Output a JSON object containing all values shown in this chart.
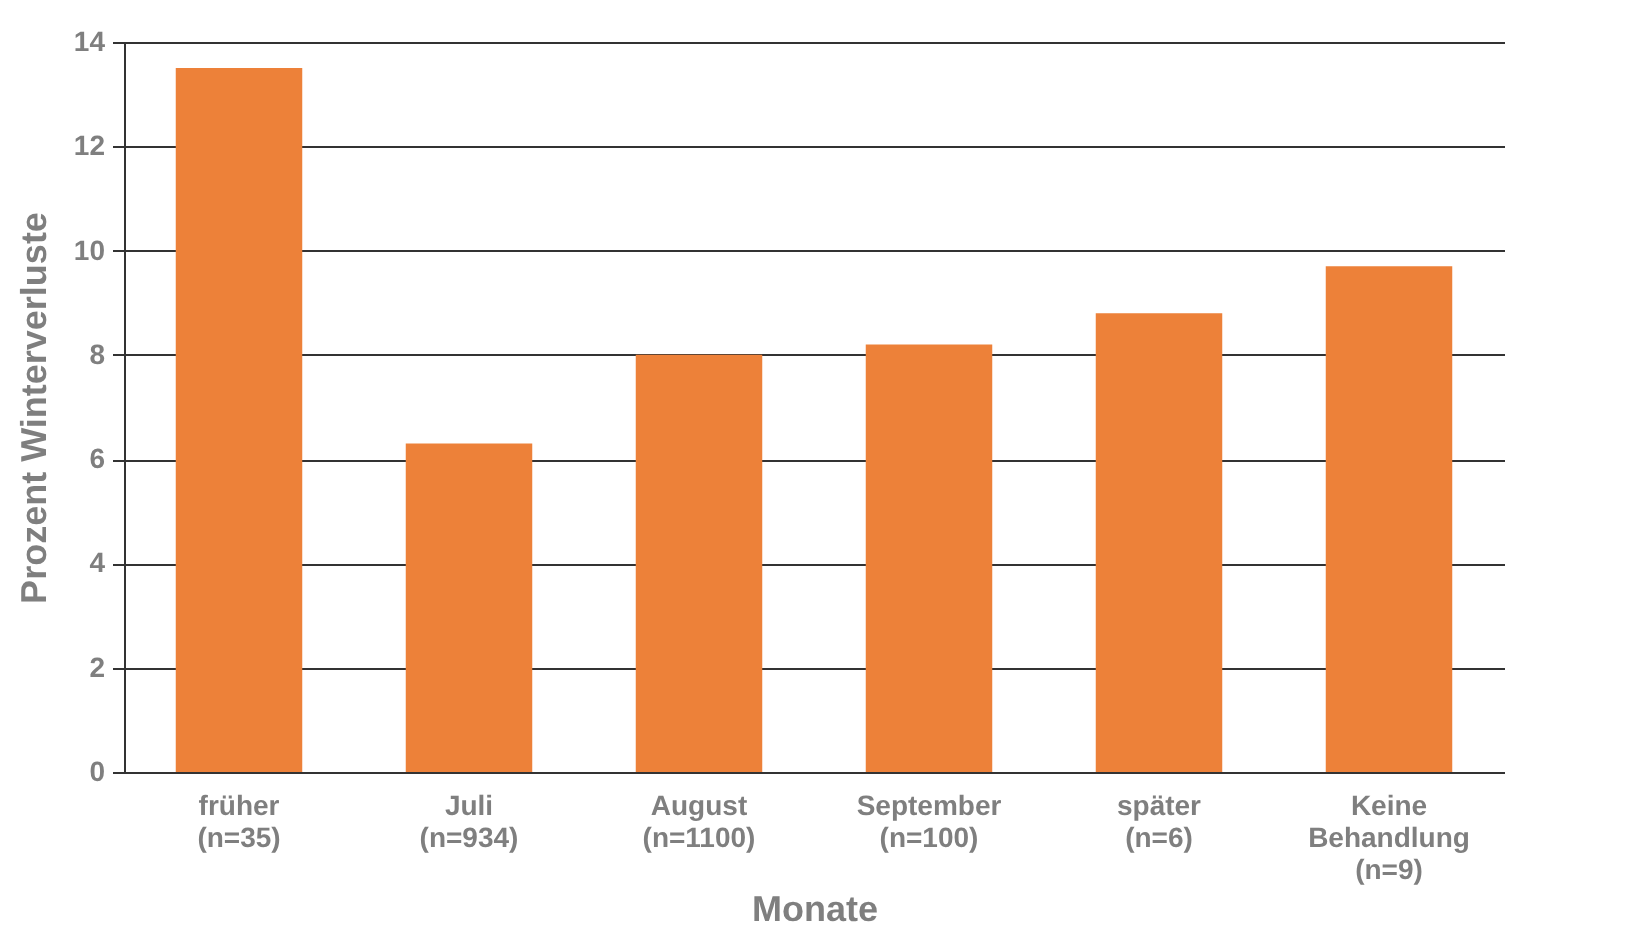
{
  "chart_data": {
    "type": "bar",
    "xlabel": "Monate",
    "ylabel": "Prozent Winterverluste",
    "categories": [
      "früher\n(n=35)",
      "Juli\n(n=934)",
      "August\n(n=1100)",
      "September\n(n=100)",
      "später\n(n=6)",
      "Keine\nBehandlung\n(n=9)"
    ],
    "values": [
      13.5,
      6.3,
      8.0,
      8.2,
      8.8,
      9.7
    ],
    "color": "#ed8139",
    "ylim": [
      0,
      14
    ],
    "yticks": [
      0,
      2,
      4,
      6,
      8,
      10,
      12,
      14
    ],
    "grid": "y"
  }
}
